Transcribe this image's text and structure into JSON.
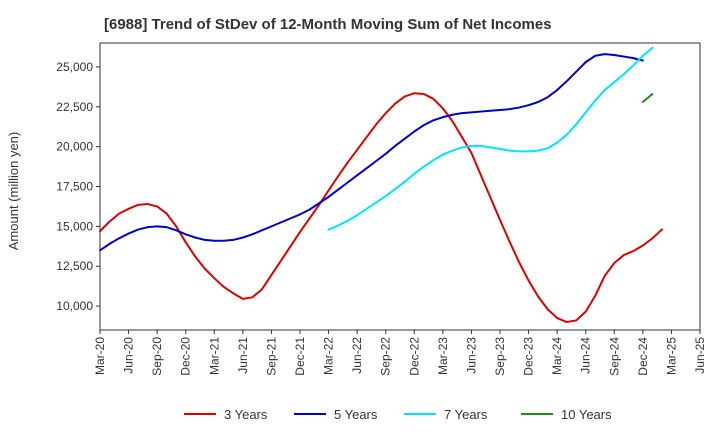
{
  "chart_data": {
    "type": "line",
    "title": "[6988]  Trend of StDev of 12-Month Moving Sum of Net Incomes",
    "ylabel": "Amount (million yen)",
    "xlabel": "",
    "ylim": [
      8500,
      26500
    ],
    "yticks": [
      10000,
      12500,
      15000,
      17500,
      20000,
      22500,
      25000
    ],
    "ytick_labels": [
      "10,000",
      "12,500",
      "15,000",
      "17,500",
      "20,000",
      "22,500",
      "25,000"
    ],
    "xticks": [
      "Mar-20",
      "Jun-20",
      "Sep-20",
      "Dec-20",
      "Mar-21",
      "Jun-21",
      "Sep-21",
      "Dec-21",
      "Mar-22",
      "Jun-22",
      "Sep-22",
      "Dec-22",
      "Mar-23",
      "Jun-23",
      "Sep-23",
      "Dec-23",
      "Mar-24",
      "Jun-24",
      "Sep-24",
      "Dec-24",
      "Mar-25",
      "Jun-25"
    ],
    "grid": true,
    "legend_position": "bottom",
    "series": [
      {
        "name": "3 Years",
        "color": "#e00000",
        "start": "Mar-20",
        "values": [
          14700,
          15300,
          15800,
          16100,
          16350,
          16400,
          16250,
          15800,
          15000,
          14000,
          13100,
          12350,
          11750,
          11200,
          10800,
          10450,
          10550,
          11050,
          11950,
          12850,
          13750,
          14650,
          15500,
          16350,
          17250,
          18150,
          19000,
          19800,
          20600,
          21400,
          22100,
          22700,
          23150,
          23350,
          23300,
          23000,
          22400,
          21600,
          20600,
          19600,
          18200,
          16800,
          15400,
          14050,
          12750,
          11600,
          10600,
          9800,
          9250,
          9000,
          9100,
          9650,
          10650,
          11900,
          12700,
          13200,
          13450,
          13800,
          14250,
          14800
        ]
      },
      {
        "name": "5 Years",
        "color": "#0000cc",
        "start": "Mar-20",
        "values": [
          13500,
          13900,
          14250,
          14550,
          14800,
          14950,
          15000,
          14950,
          14750,
          14500,
          14300,
          14150,
          14100,
          14100,
          14150,
          14300,
          14500,
          14750,
          15000,
          15250,
          15500,
          15750,
          16050,
          16450,
          16850,
          17300,
          17750,
          18200,
          18650,
          19100,
          19550,
          20050,
          20500,
          20950,
          21350,
          21650,
          21850,
          22000,
          22100,
          22150,
          22200,
          22250,
          22300,
          22350,
          22450,
          22600,
          22800,
          23100,
          23550,
          24100,
          24700,
          25300,
          25700,
          25800,
          25750,
          25650,
          25550,
          25400
        ]
      },
      {
        "name": "7 Years",
        "color": "#00e5ff",
        "start": "Mar-22",
        "values": [
          14800,
          15050,
          15350,
          15700,
          16100,
          16500,
          16900,
          17350,
          17800,
          18300,
          18750,
          19150,
          19500,
          19750,
          19950,
          20050,
          20050,
          19950,
          19850,
          19750,
          19700,
          19700,
          19750,
          19900,
          20250,
          20750,
          21400,
          22150,
          22900,
          23550,
          24050,
          24550,
          25100,
          25700,
          26200
        ]
      },
      {
        "name": "10 Years",
        "color": "#228b22",
        "start": "Dec-24",
        "values": [
          22800,
          23300
        ]
      }
    ]
  }
}
